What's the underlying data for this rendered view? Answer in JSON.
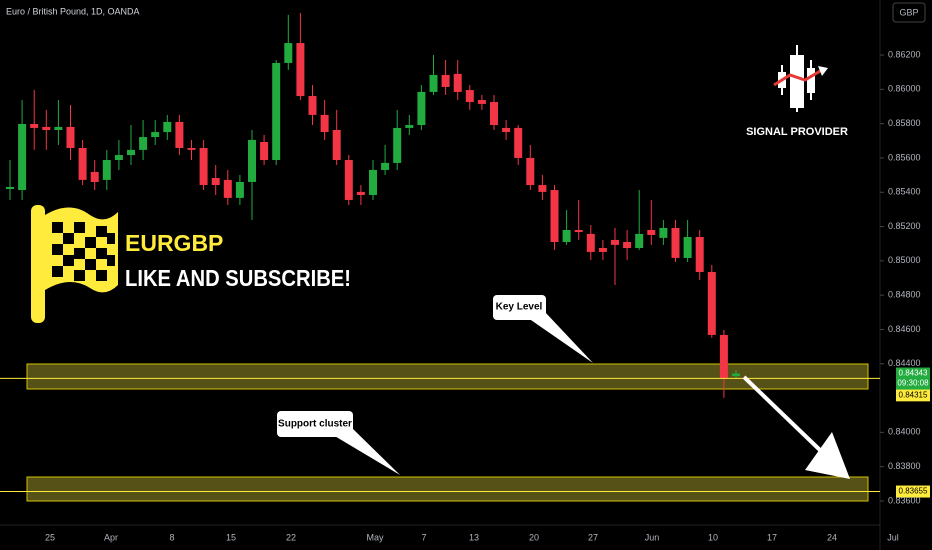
{
  "chart_data": {
    "type": "candlestick",
    "title": "Euro / British Pound, 1D, OANDA",
    "currency": "GBP",
    "up_color": "#22ab3f",
    "down_color": "#f23645",
    "open": [
      0.85419,
      0.85413,
      0.85798,
      0.85781,
      0.85763,
      0.85781,
      0.85658,
      0.85518,
      0.85472,
      0.85588,
      0.85617,
      0.85647,
      0.85722,
      0.85751,
      0.8581,
      0.85658,
      0.85658,
      0.85483,
      0.85472,
      0.85367,
      0.8546,
      0.85693,
      0.85588,
      0.86154,
      0.8627,
      0.85961,
      0.85851,
      0.85763,
      0.85588,
      0.85402,
      0.85384,
      0.8553,
      0.85571,
      0.85775,
      0.85792,
      0.85985,
      0.86084,
      0.8609,
      0.85996,
      0.85938,
      0.85926,
      0.85775,
      0.85775,
      0.856,
      0.85442,
      0.85413,
      0.8511,
      0.8518,
      0.85157,
      0.85075,
      0.85122,
      0.8511,
      0.85075,
      0.8518,
      0.85134,
      0.85192,
      0.85017,
      0.85139,
      0.84935,
      0.84568,
      0.84328
    ],
    "high": [
      0.85588,
      0.85938,
      0.85996,
      0.8588,
      0.85938,
      0.85909,
      0.85705,
      0.85588,
      0.85647,
      0.85705,
      0.85792,
      0.85821,
      0.85821,
      0.85851,
      0.85851,
      0.85705,
      0.85705,
      0.85559,
      0.8553,
      0.85501,
      0.85763,
      0.85734,
      0.86171,
      0.86434,
      0.86445,
      0.86025,
      0.85938,
      0.8588,
      0.85617,
      0.85442,
      0.85588,
      0.85676,
      0.8588,
      0.85851,
      0.86025,
      0.862,
      0.86171,
      0.86171,
      0.86025,
      0.85967,
      0.85967,
      0.85821,
      0.85792,
      0.85676,
      0.85501,
      0.85442,
      0.85297,
      0.85355,
      0.85209,
      0.85122,
      0.85192,
      0.8518,
      0.85413,
      0.85355,
      0.85238,
      0.85238,
      0.85238,
      0.8518,
      0.84976,
      0.84597,
      0.84364
    ],
    "low": [
      0.85355,
      0.85355,
      0.85647,
      0.85647,
      0.85676,
      0.85588,
      0.85442,
      0.85413,
      0.85413,
      0.8553,
      0.85559,
      0.85588,
      0.85676,
      0.85705,
      0.85617,
      0.85588,
      0.85413,
      0.85384,
      0.85326,
      0.85326,
      0.85238,
      0.85559,
      0.85559,
      0.86113,
      0.85938,
      0.85792,
      0.85705,
      0.85559,
      0.85326,
      0.85326,
      0.85355,
      0.85501,
      0.8553,
      0.85734,
      0.85763,
      0.85967,
      0.85967,
      0.85938,
      0.8588,
      0.8588,
      0.85763,
      0.85705,
      0.85559,
      0.85413,
      0.85355,
      0.85064,
      0.85093,
      0.85122,
      0.85005,
      0.85005,
      0.84859,
      0.85005,
      0.85064,
      0.85093,
      0.85093,
      0.84994,
      0.84994,
      0.84889,
      0.84551,
      0.84201,
      0.84317
    ],
    "close": [
      0.85431,
      0.85798,
      0.85775,
      0.85763,
      0.85781,
      0.85658,
      0.85472,
      0.8546,
      0.85588,
      0.85617,
      0.85647,
      0.85722,
      0.85751,
      0.8581,
      0.85658,
      0.85647,
      0.85442,
      0.85442,
      0.85367,
      0.8546,
      0.85705,
      0.85588,
      0.86154,
      0.8627,
      0.85961,
      0.85851,
      0.85751,
      0.85588,
      0.85355,
      0.85384,
      0.8553,
      0.85571,
      0.85775,
      0.85792,
      0.85985,
      0.86084,
      0.86014,
      0.85985,
      0.85926,
      0.85915,
      0.85792,
      0.85751,
      0.856,
      0.85442,
      0.85402,
      0.8511,
      0.8518,
      0.85168,
      0.85052,
      0.85052,
      0.85093,
      0.85075,
      0.85157,
      0.85151,
      0.85192,
      0.85017,
      0.85139,
      0.84935,
      0.84568,
      0.84317,
      0.84343
    ],
    "x_tick_labels": [
      "25",
      "Apr",
      "8",
      "15",
      "22",
      "May",
      "7",
      "13",
      "20",
      "27",
      "Jun",
      "10",
      "17",
      "24",
      "Jul"
    ],
    "ylim": [
      0.83489,
      0.86521
    ],
    "yticks": [
      {
        "value": 0.862,
        "label": "0.86200"
      },
      {
        "value": 0.86,
        "label": "0.86000"
      },
      {
        "value": 0.858,
        "label": "0.85800"
      },
      {
        "value": 0.856,
        "label": "0.85600"
      },
      {
        "value": 0.854,
        "label": "0.85400"
      },
      {
        "value": 0.852,
        "label": "0.85200"
      },
      {
        "value": 0.85,
        "label": "0.85000"
      },
      {
        "value": 0.848,
        "label": "0.84800"
      },
      {
        "value": 0.846,
        "label": "0.84600"
      },
      {
        "value": 0.844,
        "label": "0.84400"
      },
      {
        "value": 0.84,
        "label": "0.84000"
      },
      {
        "value": 0.838,
        "label": "0.83800"
      },
      {
        "value": 0.836,
        "label": "0.83600"
      }
    ],
    "grid": false,
    "last_price": {
      "value": 0.84343,
      "label": "0.84343",
      "countdown": "09:30:08",
      "color": "#22ab3f"
    },
    "levels": [
      {
        "value": 0.84315,
        "label": "0.84315",
        "color": "#ffeb3b"
      },
      {
        "value": 0.83655,
        "label": "0.83655",
        "color": "#ffeb3b"
      }
    ],
    "annotations": {
      "symbol": "EURGBP",
      "slogan": "LIKE AND SUBSCRIBE!",
      "key_level": "Key Level",
      "support": "Support cluster",
      "brand": "SIGNAL PROVIDER"
    }
  }
}
